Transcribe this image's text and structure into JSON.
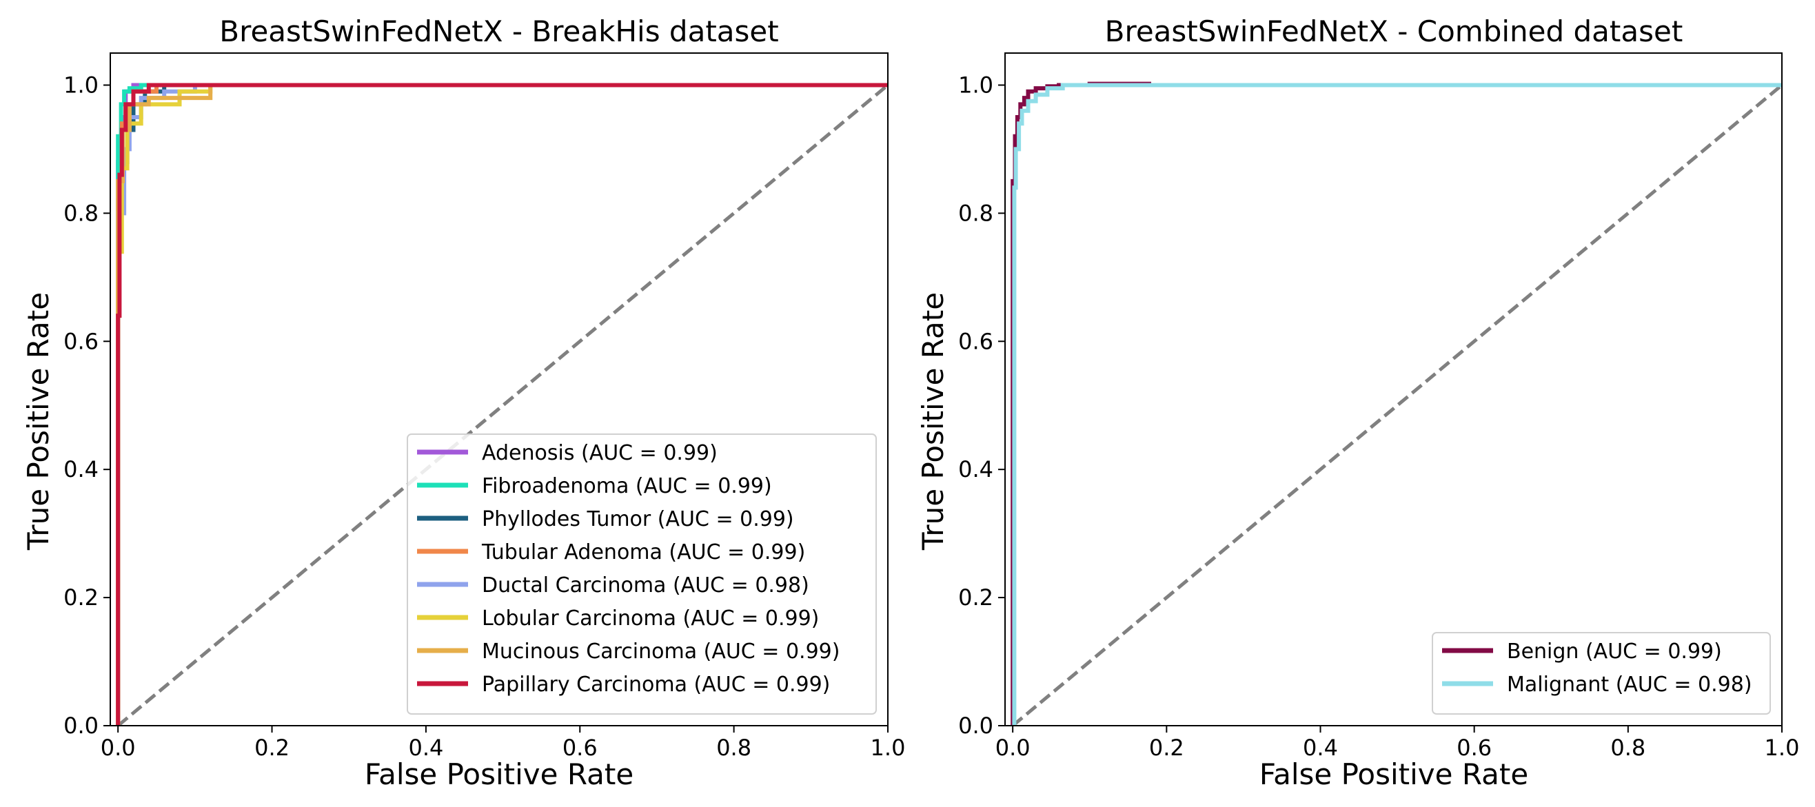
{
  "chart_data": [
    {
      "type": "line",
      "title": "BreastSwinFedNetX - BreakHis dataset",
      "xlabel": "False Positive Rate",
      "ylabel": "True Positive Rate",
      "xlim": [
        -0.01,
        1.0
      ],
      "ylim": [
        0.0,
        1.05
      ],
      "xticks": [
        0.0,
        0.2,
        0.4,
        0.6,
        0.8,
        1.0
      ],
      "xtick_labels": [
        "0.0",
        "0.2",
        "0.4",
        "0.6",
        "0.8",
        "1.0"
      ],
      "yticks": [
        0.0,
        0.2,
        0.4,
        0.6,
        0.8,
        1.0
      ],
      "ytick_labels": [
        "0.0",
        "0.2",
        "0.4",
        "0.6",
        "0.8",
        "1.0"
      ],
      "grid": false,
      "legend_position": "lower-right",
      "diagonal": {
        "color": "#808080",
        "style": "dashed",
        "x": [
          0,
          1
        ],
        "y": [
          0,
          1
        ]
      },
      "series": [
        {
          "name": "Adenosis (AUC = 0.99)",
          "color": "#a259d9",
          "x": [
            0,
            0,
            0.005,
            0.005,
            0.01,
            0.01,
            0.02,
            0.02,
            1.0
          ],
          "y": [
            0,
            0.88,
            0.88,
            0.95,
            0.95,
            0.99,
            0.99,
            1.0,
            1.0
          ]
        },
        {
          "name": "Fibroadenoma (AUC = 0.99)",
          "color": "#1de0b8",
          "x": [
            0,
            0,
            0.004,
            0.004,
            0.008,
            0.008,
            0.015,
            0.015,
            0.03,
            0.03,
            1.0
          ],
          "y": [
            0,
            0.92,
            0.92,
            0.97,
            0.97,
            0.99,
            0.99,
            0.995,
            0.995,
            1.0,
            1.0
          ]
        },
        {
          "name": "Phyllodes Tumor (AUC = 0.99)",
          "color": "#1d5f80",
          "x": [
            0,
            0,
            0.006,
            0.006,
            0.012,
            0.012,
            0.02,
            0.02,
            0.035,
            0.035,
            0.06,
            0.06,
            1.0
          ],
          "y": [
            0,
            0.82,
            0.82,
            0.88,
            0.88,
            0.93,
            0.93,
            0.97,
            0.97,
            0.99,
            0.99,
            1.0,
            1.0
          ]
        },
        {
          "name": "Tubular Adenoma (AUC = 0.99)",
          "color": "#f0874a",
          "x": [
            0,
            0,
            0.005,
            0.005,
            0.01,
            0.01,
            0.02,
            0.02,
            0.05,
            0.05,
            1.0
          ],
          "y": [
            0,
            0.85,
            0.85,
            0.94,
            0.94,
            0.97,
            0.97,
            0.99,
            0.99,
            1.0,
            1.0
          ]
        },
        {
          "name": "Ductal Carcinoma (AUC = 0.98)",
          "color": "#8fa3ec",
          "x": [
            0,
            0,
            0.008,
            0.008,
            0.015,
            0.015,
            0.03,
            0.03,
            0.06,
            0.06,
            0.1,
            0.1,
            1.0
          ],
          "y": [
            0,
            0.8,
            0.8,
            0.9,
            0.9,
            0.95,
            0.95,
            0.98,
            0.98,
            0.99,
            0.99,
            1.0,
            1.0
          ]
        },
        {
          "name": "Lobular Carcinoma (AUC = 0.99)",
          "color": "#e6d13a",
          "x": [
            0,
            0,
            0.005,
            0.005,
            0.012,
            0.012,
            0.03,
            0.03,
            0.08,
            0.08,
            0.12,
            0.12,
            1.0
          ],
          "y": [
            0,
            0.74,
            0.74,
            0.87,
            0.87,
            0.94,
            0.94,
            0.97,
            0.97,
            0.99,
            0.99,
            1.0,
            1.0
          ]
        },
        {
          "name": "Mucinous Carcinoma (AUC = 0.99)",
          "color": "#e6ae4a",
          "x": [
            0,
            0,
            0.006,
            0.006,
            0.015,
            0.015,
            0.04,
            0.04,
            0.12,
            0.12,
            1.0
          ],
          "y": [
            0,
            0.85,
            0.85,
            0.93,
            0.93,
            0.97,
            0.97,
            0.98,
            0.98,
            1.0,
            1.0
          ]
        },
        {
          "name": "Papillary Carcinoma (AUC = 0.99)",
          "color": "#c8173c",
          "x": [
            0,
            0,
            0.002,
            0.002,
            0.005,
            0.005,
            0.01,
            0.01,
            0.02,
            0.02,
            0.04,
            0.04,
            1.0
          ],
          "y": [
            0,
            0.64,
            0.64,
            0.86,
            0.86,
            0.93,
            0.93,
            0.97,
            0.97,
            0.99,
            0.99,
            1.0,
            1.0
          ]
        }
      ]
    },
    {
      "type": "line",
      "title": "BreastSwinFedNetX - Combined dataset",
      "xlabel": "False Positive Rate",
      "ylabel": "True Positive Rate",
      "xlim": [
        -0.01,
        1.0
      ],
      "ylim": [
        0.0,
        1.05
      ],
      "xticks": [
        0.0,
        0.2,
        0.4,
        0.6,
        0.8,
        1.0
      ],
      "xtick_labels": [
        "0.0",
        "0.2",
        "0.4",
        "0.6",
        "0.8",
        "1.0"
      ],
      "yticks": [
        0.0,
        0.2,
        0.4,
        0.6,
        0.8,
        1.0
      ],
      "ytick_labels": [
        "0.0",
        "0.2",
        "0.4",
        "0.6",
        "0.8",
        "1.0"
      ],
      "grid": false,
      "legend_position": "lower-right",
      "diagonal": {
        "color": "#808080",
        "style": "dashed",
        "x": [
          0,
          1
        ],
        "y": [
          0,
          1
        ]
      },
      "series": [
        {
          "name": "Benign (AUC = 0.99)",
          "color": "#820a45",
          "x": [
            0,
            0,
            0.003,
            0.003,
            0.006,
            0.006,
            0.01,
            0.01,
            0.015,
            0.015,
            0.02,
            0.02,
            0.03,
            0.03,
            0.045,
            0.045,
            0.06,
            0.06,
            0.1,
            0.1,
            0.18
          ],
          "y": [
            0,
            0.85,
            0.85,
            0.92,
            0.92,
            0.95,
            0.95,
            0.97,
            0.97,
            0.98,
            0.98,
            0.99,
            0.99,
            0.995,
            0.995,
            0.998,
            0.998,
            1.0,
            1.0,
            1.002,
            1.002
          ]
        },
        {
          "name": "Malignant (AUC = 0.98)",
          "color": "#8fdde8",
          "x": [
            0,
            0.002,
            0.002,
            0.004,
            0.004,
            0.008,
            0.008,
            0.012,
            0.012,
            0.02,
            0.02,
            0.03,
            0.03,
            0.045,
            0.045,
            0.065,
            0.065,
            1.0
          ],
          "y": [
            0,
            0,
            0.84,
            0.84,
            0.9,
            0.9,
            0.94,
            0.94,
            0.96,
            0.96,
            0.975,
            0.975,
            0.985,
            0.985,
            0.995,
            0.995,
            1.0,
            1.0
          ]
        }
      ]
    }
  ]
}
